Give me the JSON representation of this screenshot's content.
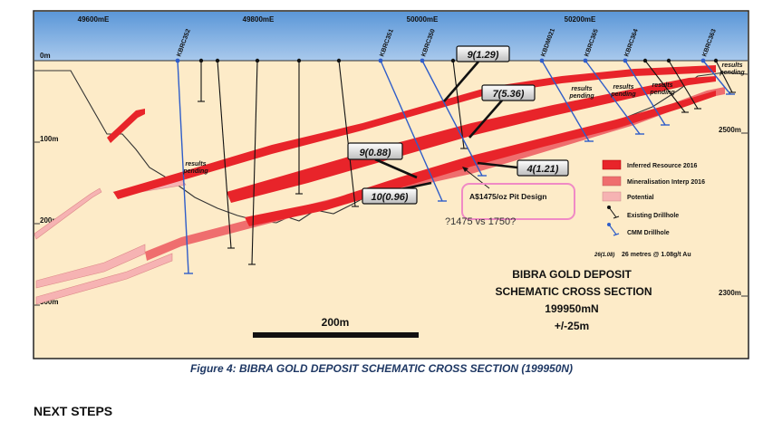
{
  "eastings": [
    "49600mE",
    "49800mE",
    "50000mE",
    "50200mE"
  ],
  "depths": {
    "zero": "0m",
    "d100": "100m",
    "d200": "200m",
    "d300": "300m",
    "rl2500": "2500m",
    "rl2300": "2300m"
  },
  "drillholes": [
    "KBRC352",
    "KBRC351",
    "KBRC350",
    "KBDM021",
    "KBRC365",
    "KBRC364",
    "KBRC363"
  ],
  "intercepts": {
    "a": "9(1.29)",
    "b": "7(5.36)",
    "c": "9(0.88)",
    "d": "4(1.21)",
    "e": "10(0.96)"
  },
  "results_pending": [
    "results",
    "pending"
  ],
  "pit_design": "A$1475/oz Pit Design",
  "handwritten_note": "?1475 vs 1750?",
  "legend": {
    "inferred": "Inferred Resource 2016",
    "interp": "Mineralisation Interp 2016",
    "potential": "Potential",
    "existing": "Existing Drillhole",
    "cmm": "CMM Drillhole",
    "intercept_key": "26(1.08)",
    "intercept_desc": "26 metres @ 1.08g/t Au"
  },
  "title": {
    "line1": "BIBRA GOLD DEPOSIT",
    "line2": "SCHEMATIC CROSS SECTION",
    "line3": "199950mN",
    "line4": "+/-25m"
  },
  "scale_label": "200m",
  "caption": "Figure 4: BIBRA GOLD DEPOSIT SCHEMATIC CROSS SECTION (199950N)",
  "next_steps": "NEXT STEPS",
  "colors": {
    "sky": "#6fa8dc",
    "ground": "#fdebc8",
    "inferred": "#e8242a",
    "interp": "#ef6e6e",
    "potential": "#f6b3b3",
    "cmm": "#2f5dc9",
    "pit": "#f08ac5"
  }
}
